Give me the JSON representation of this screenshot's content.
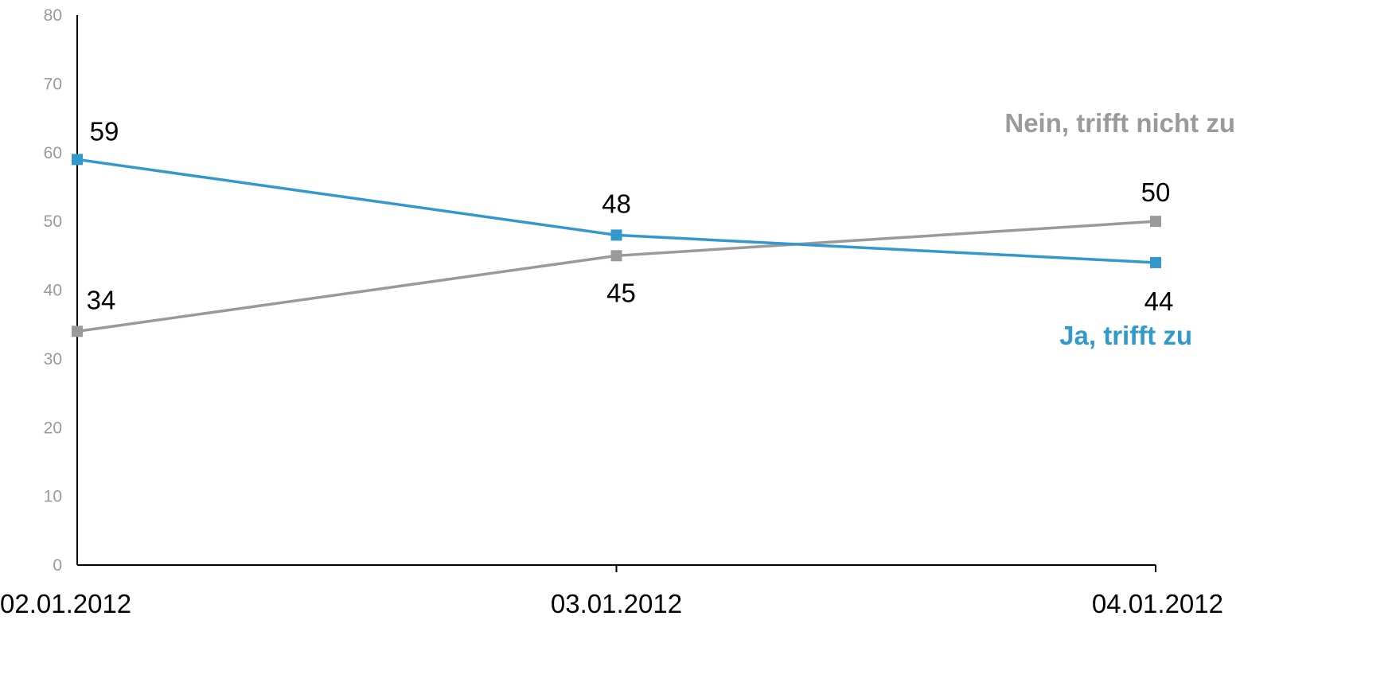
{
  "chart_data": {
    "type": "line",
    "title": "",
    "xlabel": "",
    "ylabel": "",
    "categories": [
      "02.01.2012",
      "03.01.2012",
      "04.01.2012"
    ],
    "ylim": [
      0,
      80
    ],
    "yticks": [
      "0",
      "10",
      "20",
      "30",
      "40",
      "50",
      "60",
      "70",
      "80"
    ],
    "grid": false,
    "series": [
      {
        "name": "Ja, trifft zu",
        "color": "#3399cc",
        "values": [
          59,
          48,
          44
        ],
        "labels": [
          "59",
          "48",
          "44"
        ]
      },
      {
        "name": "Nein, trifft nicht zu",
        "color": "#9a9a9a",
        "values": [
          34,
          45,
          50
        ],
        "labels": [
          "34",
          "45",
          "50"
        ]
      }
    ]
  }
}
